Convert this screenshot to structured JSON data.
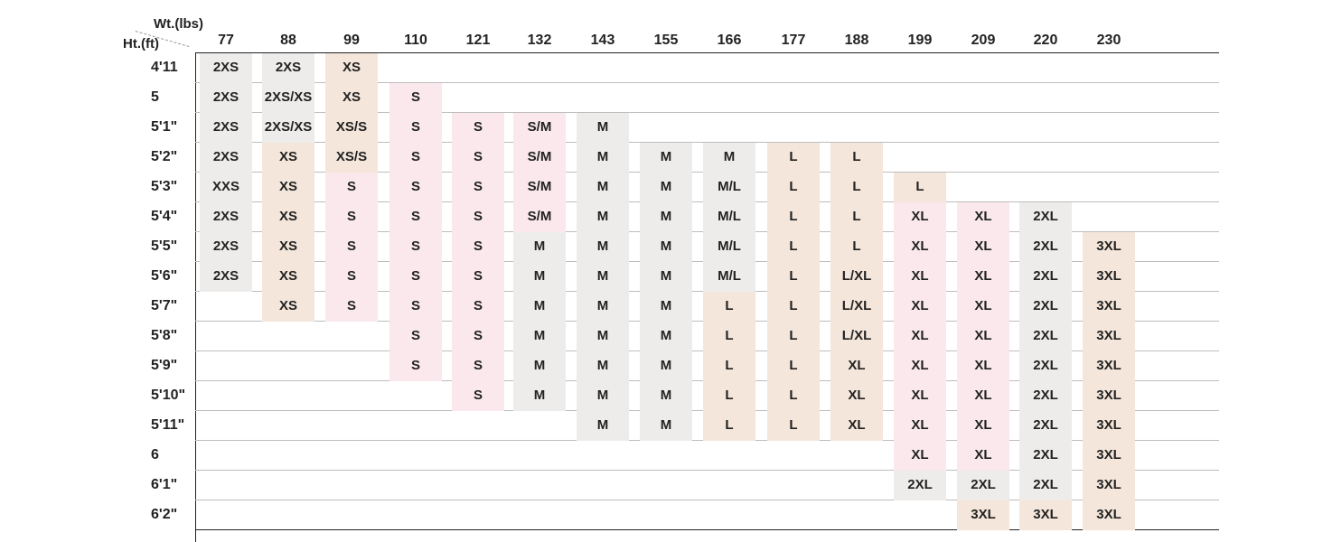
{
  "corner": {
    "weight_label": "Wt.(lbs)",
    "height_label": "Ht.(ft)"
  },
  "chart_data": {
    "type": "table",
    "x_label": "Wt.(lbs)",
    "y_label": "Ht.(ft)",
    "weights": [
      "77",
      "88",
      "99",
      "110",
      "121",
      "132",
      "143",
      "155",
      "166",
      "177",
      "188",
      "199",
      "209",
      "220",
      "230"
    ],
    "heights": [
      "4'11",
      "5",
      "5'1\"",
      "5'2\"",
      "5'3\"",
      "5'4\"",
      "5'5\"",
      "5'6\"",
      "5'7\"",
      "5'8\"",
      "5'9\"",
      "5'10\"",
      "5'11\"",
      "6",
      "6'1\"",
      "6'2\""
    ],
    "colors": {
      "gray": "#eeeceb",
      "pink": "#fae8ec",
      "tan": "#f4e6da"
    },
    "cells": [
      [
        "2XS",
        "2XS",
        "XS",
        "",
        "",
        "",
        "",
        "",
        "",
        "",
        "",
        "",
        "",
        "",
        ""
      ],
      [
        "2XS",
        "2XS/XS",
        "XS",
        "S",
        "",
        "",
        "",
        "",
        "",
        "",
        "",
        "",
        "",
        "",
        ""
      ],
      [
        "2XS",
        "2XS/XS",
        "XS/S",
        "S",
        "S",
        "S/M",
        "M",
        "",
        "",
        "",
        "",
        "",
        "",
        "",
        ""
      ],
      [
        "2XS",
        "XS",
        "XS/S",
        "S",
        "S",
        "S/M",
        "M",
        "M",
        "M",
        "L",
        "L",
        "",
        "",
        "",
        ""
      ],
      [
        "XXS",
        "XS",
        "S",
        "S",
        "S",
        "S/M",
        "M",
        "M",
        "M/L",
        "L",
        "L",
        "L",
        "",
        "",
        ""
      ],
      [
        "2XS",
        "XS",
        "S",
        "S",
        "S",
        "S/M",
        "M",
        "M",
        "M/L",
        "L",
        "L",
        "XL",
        "XL",
        "2XL",
        ""
      ],
      [
        "2XS",
        "XS",
        "S",
        "S",
        "S",
        "M",
        "M",
        "M",
        "M/L",
        "L",
        "L",
        "XL",
        "XL",
        "2XL",
        "3XL"
      ],
      [
        "2XS",
        "XS",
        "S",
        "S",
        "S",
        "M",
        "M",
        "M",
        "M/L",
        "L",
        "L/XL",
        "XL",
        "XL",
        "2XL",
        "3XL"
      ],
      [
        "",
        "XS",
        "S",
        "S",
        "S",
        "M",
        "M",
        "M",
        "L",
        "L",
        "L/XL",
        "XL",
        "XL",
        "2XL",
        "3XL"
      ],
      [
        "",
        "",
        "",
        "S",
        "S",
        "M",
        "M",
        "M",
        "L",
        "L",
        "L/XL",
        "XL",
        "XL",
        "2XL",
        "3XL"
      ],
      [
        "",
        "",
        "",
        "S",
        "S",
        "M",
        "M",
        "M",
        "L",
        "L",
        "XL",
        "XL",
        "XL",
        "2XL",
        "3XL"
      ],
      [
        "",
        "",
        "",
        "",
        "S",
        "M",
        "M",
        "M",
        "L",
        "L",
        "XL",
        "XL",
        "XL",
        "2XL",
        "3XL"
      ],
      [
        "",
        "",
        "",
        "",
        "",
        "",
        "M",
        "M",
        "L",
        "L",
        "XL",
        "XL",
        "XL",
        "2XL",
        "3XL"
      ],
      [
        "",
        "",
        "",
        "",
        "",
        "",
        "",
        "",
        "",
        "",
        "",
        "XL",
        "XL",
        "2XL",
        "3XL"
      ],
      [
        "",
        "",
        "",
        "",
        "",
        "",
        "",
        "",
        "",
        "",
        "",
        "2XL",
        "2XL",
        "2XL",
        "3XL"
      ],
      [
        "",
        "",
        "",
        "",
        "",
        "",
        "",
        "",
        "",
        "",
        "",
        "",
        "3XL",
        "3XL",
        "3XL"
      ]
    ]
  }
}
